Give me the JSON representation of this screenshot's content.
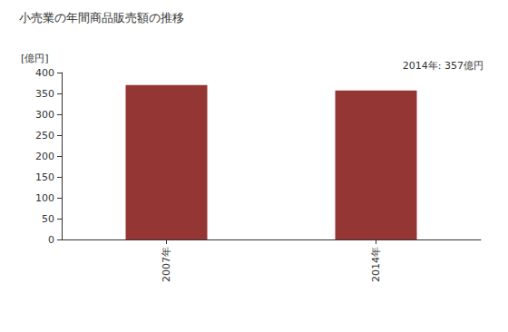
{
  "chart_data": {
    "type": "bar",
    "title": "小売業の年間商品販売額の推移",
    "y_label": "[億円]",
    "annotation": "2014年: 357億円",
    "categories": [
      "2007年",
      "2014年"
    ],
    "values": [
      370,
      357
    ],
    "color": "#943634",
    "ylim": [
      0,
      400
    ],
    "yticks": [
      0,
      50,
      100,
      150,
      200,
      250,
      300,
      350,
      400
    ],
    "grid": false
  }
}
